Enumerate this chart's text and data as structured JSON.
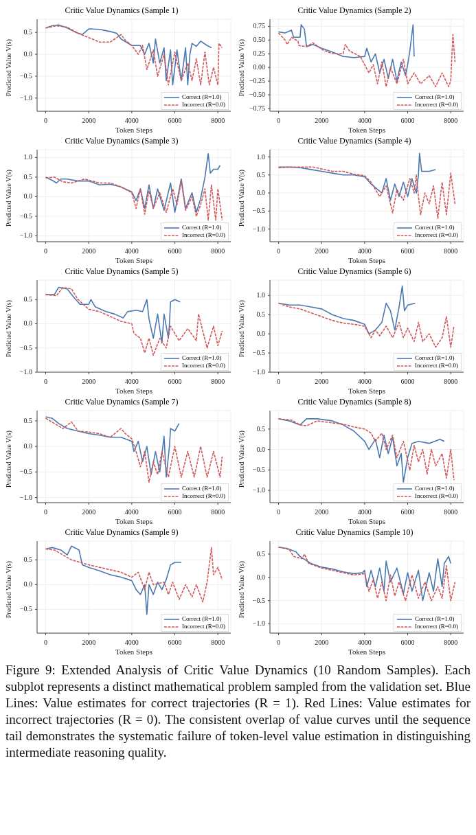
{
  "chart_data": [
    {
      "type": "line",
      "title": "Critic Value Dynamics (Sample 1)",
      "xlabel": "Token Steps",
      "ylabel": "Predicted Value V(s)",
      "xlim": [
        -400,
        8600
      ],
      "xticks": [
        0,
        2000,
        4000,
        6000,
        8000
      ],
      "ylim": [
        -1.3,
        0.8
      ],
      "yticks": [
        {
          "value": -1,
          "label": "−1.0"
        },
        {
          "value": -0.5,
          "label": "−0.5"
        },
        {
          "value": 0,
          "label": "0.0"
        },
        0.5
      ],
      "grid": true,
      "legend": "bottom right",
      "series": [
        {
          "name": "Correct (R=1.0)",
          "color": "#4a78b0",
          "line_style": "solid",
          "x": [
            0,
            300,
            600,
            1000,
            1400,
            1700,
            2000,
            2500,
            3000,
            3300,
            3500,
            4000,
            4400,
            4600,
            4800,
            5000,
            5100,
            5300,
            5500,
            5600,
            5800,
            5900,
            6100,
            6300,
            6500,
            6600,
            6700,
            6800,
            7000,
            7200,
            7500,
            7700
          ],
          "values": [
            0.6,
            0.65,
            0.67,
            0.6,
            0.5,
            0.45,
            0.58,
            0.57,
            0.52,
            0.48,
            0.35,
            0.2,
            0.2,
            0.0,
            0.25,
            -0.2,
            0.35,
            -0.2,
            0.15,
            -0.6,
            0.1,
            -0.7,
            0.1,
            -0.6,
            0.15,
            -0.7,
            0.0,
            0.25,
            0.18,
            0.3,
            0.2,
            0.15
          ]
        },
        {
          "name": "Incorrect (R=0.0)",
          "color": "#d0585a",
          "line_style": "dashed",
          "x": [
            0,
            500,
            1000,
            1500,
            2000,
            2500,
            3000,
            3300,
            3500,
            3700,
            4000,
            4300,
            4500,
            4700,
            5000,
            5200,
            5500,
            5700,
            6000,
            6300,
            6600,
            6800,
            7000,
            7200,
            7400,
            7600,
            7800,
            8000,
            8050,
            8200
          ],
          "values": [
            0.6,
            0.65,
            0.62,
            0.48,
            0.38,
            0.28,
            0.28,
            0.38,
            0.45,
            0.32,
            0.2,
            0.0,
            0.2,
            -0.35,
            0.1,
            -0.5,
            0.0,
            -0.7,
            0.05,
            -0.6,
            -0.2,
            -0.6,
            -0.1,
            -0.7,
            0.05,
            -0.7,
            -0.3,
            -0.7,
            0.25,
            0.15
          ]
        }
      ]
    },
    {
      "type": "line",
      "title": "Critic Value Dynamics (Sample 2)",
      "xlabel": "Token Steps",
      "ylabel": "Predicted Value V(s)",
      "xlim": [
        -400,
        8600
      ],
      "xticks": [
        0,
        2000,
        4000,
        6000,
        8000
      ],
      "ylim": [
        -0.8,
        0.88
      ],
      "yticks": [
        {
          "value": -0.75,
          "label": "−0.75"
        },
        {
          "value": -0.5,
          "label": "−0.50"
        },
        {
          "value": -0.25,
          "label": "−0.25"
        },
        {
          "value": 0,
          "label": "0.00"
        },
        0.25,
        {
          "value": 0.5,
          "label": "0.50"
        },
        0.75
      ],
      "grid": true,
      "legend": "bottom right",
      "series": [
        {
          "name": "Correct (R=1.0)",
          "color": "#4a78b0",
          "line_style": "solid",
          "x": [
            0,
            300,
            600,
            700,
            1000,
            1050,
            1200,
            1300,
            1600,
            2000,
            2500,
            3000,
            3500,
            4000,
            4100,
            4300,
            4500,
            4700,
            4900,
            5100,
            5300,
            5500,
            5700,
            5900,
            6000,
            6100,
            6250,
            6300
          ],
          "values": [
            0.65,
            0.63,
            0.68,
            0.55,
            0.55,
            0.78,
            0.7,
            0.38,
            0.42,
            0.35,
            0.28,
            0.2,
            0.18,
            0.2,
            0.35,
            0.1,
            0.25,
            -0.1,
            0.15,
            -0.2,
            0.15,
            -0.25,
            0.1,
            -0.15,
            0.05,
            0.3,
            0.78,
            0.2
          ]
        },
        {
          "name": "Incorrect (R=0.0)",
          "color": "#d0585a",
          "line_style": "dashed",
          "x": [
            0,
            300,
            400,
            600,
            900,
            950,
            1300,
            1600,
            2000,
            2500,
            3000,
            3100,
            3300,
            3800,
            4000,
            4200,
            4400,
            4600,
            4800,
            5000,
            5200,
            5500,
            5800,
            6000,
            6300,
            6600,
            7000,
            7300,
            7600,
            7900,
            8000,
            8100,
            8200
          ],
          "values": [
            0.63,
            0.5,
            0.42,
            0.55,
            0.48,
            0.4,
            0.38,
            0.45,
            0.33,
            0.25,
            0.25,
            0.42,
            0.3,
            0.2,
            0.05,
            -0.1,
            0.05,
            -0.3,
            0.1,
            -0.35,
            0.0,
            -0.3,
            0.15,
            -0.3,
            -0.1,
            -0.3,
            -0.15,
            -0.35,
            -0.1,
            -0.35,
            -0.25,
            0.6,
            0.1
          ]
        }
      ]
    },
    {
      "type": "line",
      "title": "Critic Value Dynamics (Sample 3)",
      "xlabel": "Token Steps",
      "ylabel": "Predicted Value V(s)",
      "xlim": [
        -400,
        8600
      ],
      "xticks": [
        0,
        2000,
        4000,
        6000,
        8000
      ],
      "ylim": [
        -1.15,
        1.2
      ],
      "yticks": [
        {
          "value": -1,
          "label": "−1.0"
        },
        {
          "value": -0.5,
          "label": "−0.5"
        },
        {
          "value": 0,
          "label": "0.0"
        },
        0.5,
        {
          "value": 1,
          "label": "1.0"
        }
      ],
      "grid": true,
      "legend": "bottom right",
      "series": [
        {
          "name": "Correct (R=1.0)",
          "color": "#4a78b0",
          "line_style": "solid",
          "x": [
            0,
            300,
            500,
            700,
            1000,
            1500,
            2000,
            2500,
            3000,
            3500,
            4000,
            4200,
            4400,
            4600,
            4800,
            5000,
            5200,
            5500,
            5800,
            6000,
            6300,
            6500,
            6800,
            7000,
            7200,
            7400,
            7550,
            7650,
            7800,
            8000,
            8100
          ],
          "values": [
            0.5,
            0.42,
            0.35,
            0.45,
            0.45,
            0.4,
            0.4,
            0.3,
            0.32,
            0.25,
            0.12,
            -0.1,
            0.2,
            -0.3,
            0.3,
            -0.3,
            0.2,
            -0.35,
            0.35,
            -0.4,
            0.45,
            -0.3,
            0.1,
            -0.4,
            -0.05,
            0.5,
            1.1,
            0.6,
            0.7,
            0.7,
            0.8
          ]
        },
        {
          "name": "Incorrect (R=0.0)",
          "color": "#d0585a",
          "line_style": "dashed",
          "x": [
            0,
            400,
            800,
            1200,
            1800,
            2500,
            3000,
            3500,
            4000,
            4200,
            4400,
            4600,
            4800,
            5000,
            5300,
            5600,
            5900,
            6100,
            6300,
            6500,
            6800,
            7000,
            7200,
            7400,
            7550,
            7700,
            7900,
            8000,
            8200
          ],
          "values": [
            0.48,
            0.5,
            0.38,
            0.35,
            0.45,
            0.35,
            0.35,
            0.25,
            0.1,
            -0.3,
            0.2,
            -0.45,
            0.15,
            -0.3,
            0.1,
            -0.4,
            0.2,
            -0.2,
            0.4,
            -0.35,
            0.0,
            -0.5,
            -0.2,
            0.2,
            -0.6,
            0.3,
            -0.6,
            0.2,
            -0.6
          ]
        }
      ]
    },
    {
      "type": "line",
      "title": "Critic Value Dynamics (Sample 4)",
      "xlabel": "Token Steps",
      "ylabel": "Predicted Value V(s)",
      "xlim": [
        -400,
        8600
      ],
      "xticks": [
        0,
        2000,
        4000,
        6000,
        8000
      ],
      "ylim": [
        -1.35,
        1.2
      ],
      "yticks": [
        {
          "value": -1,
          "label": "−1.0"
        },
        {
          "value": -0.5,
          "label": "−0.5"
        },
        {
          "value": 0,
          "label": "0.0"
        },
        0.5,
        {
          "value": 1,
          "label": "1.0"
        }
      ],
      "grid": true,
      "legend": "bottom right",
      "series": [
        {
          "name": "Correct (R=1.0)",
          "color": "#4a78b0",
          "line_style": "solid",
          "x": [
            0,
            500,
            1000,
            1500,
            2000,
            2500,
            3000,
            3500,
            4000,
            4300,
            4600,
            4800,
            5000,
            5200,
            5400,
            5600,
            5800,
            6000,
            6200,
            6400,
            6500,
            6550,
            6650,
            7000,
            7300
          ],
          "values": [
            0.72,
            0.72,
            0.7,
            0.65,
            0.6,
            0.55,
            0.5,
            0.5,
            0.45,
            0.25,
            0.1,
            0.0,
            0.4,
            -0.2,
            0.25,
            -0.1,
            0.3,
            -0.1,
            0.4,
            0.0,
            0.5,
            1.1,
            0.6,
            0.6,
            0.65
          ]
        },
        {
          "name": "Incorrect (R=0.0)",
          "color": "#d0585a",
          "line_style": "dashed",
          "x": [
            0,
            800,
            1600,
            2500,
            3000,
            3500,
            4000,
            4300,
            4500,
            4700,
            5000,
            5200,
            5300,
            5500,
            5800,
            6100,
            6300,
            6400,
            6500,
            6600,
            6800,
            7000,
            7200,
            7400,
            7600,
            7800,
            8000,
            8200
          ],
          "values": [
            0.7,
            0.72,
            0.72,
            0.6,
            0.6,
            0.52,
            0.48,
            0.3,
            0.1,
            -0.1,
            0.2,
            -0.3,
            -0.55,
            0.1,
            -0.2,
            0.4,
            0.0,
            0.5,
            -0.1,
            -0.6,
            0.0,
            -0.3,
            0.2,
            -0.7,
            0.3,
            -0.6,
            0.55,
            -0.3
          ]
        }
      ]
    },
    {
      "type": "line",
      "title": "Critic Value Dynamics (Sample 5)",
      "xlabel": "Token Steps",
      "ylabel": "Predicted Value V(s)",
      "xlim": [
        -400,
        8600
      ],
      "xticks": [
        0,
        2000,
        4000,
        6000,
        8000
      ],
      "ylim": [
        -1.0,
        0.9
      ],
      "yticks": [
        {
          "value": -1,
          "label": "−1.0"
        },
        {
          "value": -0.5,
          "label": "−0.5"
        },
        {
          "value": 0,
          "label": "0.0"
        },
        0.5
      ],
      "grid": true,
      "legend": "bottom right",
      "series": [
        {
          "name": "Correct (R=1.0)",
          "color": "#4a78b0",
          "line_style": "solid",
          "x": [
            0,
            400,
            600,
            1000,
            1300,
            1600,
            2000,
            2100,
            2300,
            2800,
            3200,
            3600,
            3800,
            4200,
            4500,
            4700,
            4800,
            5000,
            5200,
            5400,
            5500,
            5700,
            5750,
            5800,
            6000,
            6250
          ],
          "values": [
            0.6,
            0.6,
            0.75,
            0.72,
            0.55,
            0.4,
            0.4,
            0.5,
            0.35,
            0.25,
            0.2,
            0.12,
            0.25,
            0.28,
            0.25,
            0.5,
            0.1,
            -0.3,
            0.2,
            -0.4,
            0.2,
            -0.3,
            0.0,
            0.45,
            0.5,
            0.45
          ]
        },
        {
          "name": "Incorrect (R=0.0)",
          "color": "#d0585a",
          "line_style": "dashed",
          "x": [
            0,
            500,
            800,
            1200,
            1500,
            2000,
            2500,
            3000,
            3500,
            4000,
            4100,
            4400,
            4600,
            4800,
            5000,
            5300,
            5600,
            5800,
            6200,
            6600,
            7000,
            7100,
            7300,
            7500,
            7800,
            8000,
            8200
          ],
          "values": [
            0.6,
            0.58,
            0.75,
            0.72,
            0.5,
            0.3,
            0.25,
            0.15,
            0.05,
            0.0,
            -0.2,
            -0.3,
            -0.6,
            -0.3,
            -0.65,
            -0.3,
            -0.5,
            -0.05,
            -0.35,
            -0.1,
            -0.35,
            0.2,
            -0.15,
            -0.5,
            -0.05,
            -0.45,
            -0.15
          ]
        }
      ]
    },
    {
      "type": "line",
      "title": "Critic Value Dynamics (Sample 6)",
      "xlabel": "Token Steps",
      "ylabel": "Predicted Value V(s)",
      "xlim": [
        -400,
        8600
      ],
      "xticks": [
        0,
        2000,
        4000,
        6000,
        8000
      ],
      "ylim": [
        -1.0,
        1.4
      ],
      "yticks": [
        {
          "value": -1,
          "label": "−1.0"
        },
        {
          "value": -0.5,
          "label": "−0.5"
        },
        {
          "value": 0,
          "label": "0.0"
        },
        0.5,
        {
          "value": 1,
          "label": "1.0"
        }
      ],
      "grid": true,
      "legend": "bottom right",
      "series": [
        {
          "name": "Correct (R=1.0)",
          "color": "#4a78b0",
          "line_style": "solid",
          "x": [
            0,
            500,
            1000,
            1500,
            2000,
            2500,
            3000,
            3500,
            4000,
            4200,
            4500,
            4800,
            5000,
            5200,
            5400,
            5600,
            5750,
            5850,
            6000,
            6350
          ],
          "values": [
            0.8,
            0.75,
            0.75,
            0.7,
            0.65,
            0.5,
            0.4,
            0.35,
            0.25,
            0.0,
            0.1,
            0.3,
            0.8,
            0.6,
            0.1,
            0.7,
            1.25,
            0.6,
            0.75,
            0.8
          ]
        },
        {
          "name": "Incorrect (R=0.0)",
          "color": "#d0585a",
          "line_style": "dashed",
          "x": [
            0,
            500,
            1000,
            1500,
            2000,
            2500,
            3000,
            3500,
            4000,
            4300,
            4500,
            4700,
            5000,
            5300,
            5600,
            5800,
            6000,
            6300,
            6500,
            6700,
            7000,
            7300,
            7600,
            7800,
            8000,
            8150
          ],
          "values": [
            0.8,
            0.7,
            0.65,
            0.55,
            0.45,
            0.35,
            0.28,
            0.25,
            0.2,
            -0.1,
            0.1,
            -0.05,
            0.2,
            -0.1,
            0.3,
            -0.1,
            0.15,
            -0.2,
            0.3,
            -0.2,
            0.0,
            -0.35,
            -0.1,
            0.45,
            -0.35,
            0.2
          ]
        }
      ]
    },
    {
      "type": "line",
      "title": "Critic Value Dynamics (Sample 7)",
      "xlabel": "Token Steps",
      "ylabel": "Predicted Value V(s)",
      "xlim": [
        -400,
        8600
      ],
      "xticks": [
        0,
        2000,
        4000,
        6000,
        8000
      ],
      "ylim": [
        -1.1,
        0.7
      ],
      "yticks": [
        {
          "value": -1,
          "label": "−1.0"
        },
        {
          "value": -0.5,
          "label": "−0.5"
        },
        {
          "value": 0,
          "label": "0.0"
        },
        0.5
      ],
      "grid": true,
      "legend": "bottom right",
      "series": [
        {
          "name": "Correct (R=1.0)",
          "color": "#4a78b0",
          "line_style": "solid",
          "x": [
            0,
            300,
            600,
            1000,
            1500,
            2000,
            2500,
            3000,
            3500,
            4000,
            4100,
            4300,
            4500,
            4700,
            4900,
            5100,
            5300,
            5500,
            5600,
            5750,
            5800,
            6000,
            6200
          ],
          "values": [
            0.58,
            0.55,
            0.45,
            0.35,
            0.3,
            0.25,
            0.22,
            0.18,
            0.18,
            0.1,
            -0.1,
            0.1,
            -0.3,
            0.0,
            -0.55,
            -0.1,
            -0.5,
            0.2,
            -0.6,
            0.0,
            0.35,
            0.3,
            0.45
          ]
        },
        {
          "name": "Incorrect (R=0.0)",
          "color": "#d0585a",
          "line_style": "dashed",
          "x": [
            0,
            400,
            800,
            1200,
            1500,
            2000,
            2500,
            3000,
            3500,
            3700,
            4000,
            4200,
            4400,
            4600,
            4800,
            5000,
            5200,
            5400,
            5700,
            6000,
            6300,
            6600,
            6900,
            7200,
            7500,
            7800,
            8100,
            8200
          ],
          "values": [
            0.55,
            0.45,
            0.35,
            0.48,
            0.3,
            0.28,
            0.25,
            0.18,
            0.35,
            0.25,
            0.15,
            -0.1,
            -0.4,
            -0.1,
            -0.7,
            -0.3,
            -0.55,
            -0.1,
            -0.6,
            0.0,
            -0.6,
            -0.1,
            -0.6,
            0.0,
            -0.6,
            -0.1,
            -0.6,
            -0.2
          ]
        }
      ]
    },
    {
      "type": "line",
      "title": "Critic Value Dynamics (Sample 8)",
      "xlabel": "Token Steps",
      "ylabel": "Predicted Value V(s)",
      "xlim": [
        -400,
        8600
      ],
      "xticks": [
        0,
        2000,
        4000,
        6000,
        8000
      ],
      "ylim": [
        -1.3,
        0.95
      ],
      "yticks": [
        {
          "value": -1,
          "label": "−1.0"
        },
        {
          "value": -0.5,
          "label": "−0.5"
        },
        {
          "value": 0,
          "label": "0.0"
        },
        0.5
      ],
      "grid": true,
      "legend": "bottom right",
      "series": [
        {
          "name": "Correct (R=1.0)",
          "color": "#4a78b0",
          "line_style": "solid",
          "x": [
            0,
            500,
            1000,
            1300,
            1800,
            2500,
            3000,
            3500,
            4000,
            4200,
            4500,
            4700,
            4900,
            5100,
            5300,
            5500,
            5700,
            5800,
            6000,
            6200,
            6500,
            7000,
            7500,
            7700
          ],
          "values": [
            0.75,
            0.7,
            0.6,
            0.75,
            0.75,
            0.7,
            0.6,
            0.45,
            0.2,
            0.0,
            0.25,
            -0.2,
            0.35,
            -0.1,
            0.3,
            -0.4,
            -0.1,
            -0.8,
            -0.2,
            0.15,
            0.2,
            0.15,
            0.25,
            0.2
          ]
        },
        {
          "name": "Incorrect (R=0.0)",
          "color": "#d0585a",
          "line_style": "dashed",
          "x": [
            0,
            600,
            1000,
            1300,
            1800,
            2500,
            3000,
            3500,
            4000,
            4300,
            4500,
            4800,
            5000,
            5300,
            5500,
            5800,
            6100,
            6300,
            6500,
            6700,
            6900,
            7100,
            7300,
            7600,
            7800,
            8000,
            8150
          ],
          "values": [
            0.75,
            0.72,
            0.6,
            0.58,
            0.7,
            0.65,
            0.62,
            0.55,
            0.5,
            0.4,
            0.2,
            0.4,
            0.0,
            0.35,
            -0.2,
            0.2,
            -0.5,
            0.1,
            -0.3,
            0.0,
            -0.6,
            0.0,
            -0.4,
            -0.1,
            -0.7,
            0.0,
            -0.75
          ]
        }
      ]
    },
    {
      "type": "line",
      "title": "Critic Value Dynamics (Sample 9)",
      "xlabel": "Token Steps",
      "ylabel": "Predicted Value V(s)",
      "xlim": [
        -400,
        8600
      ],
      "xticks": [
        0,
        2000,
        4000,
        6000,
        8000
      ],
      "ylim": [
        -0.98,
        0.88
      ],
      "yticks": [
        {
          "value": -0.5,
          "label": "−0.5"
        },
        {
          "value": 0,
          "label": "0.0"
        },
        0.5
      ],
      "grid": true,
      "legend": "bottom right",
      "series": [
        {
          "name": "Correct (R=1.0)",
          "color": "#4a78b0",
          "line_style": "solid",
          "x": [
            0,
            300,
            700,
            1000,
            1200,
            1550,
            1700,
            2000,
            2500,
            3000,
            3500,
            4000,
            4200,
            4400,
            4600,
            4700,
            4800,
            5000,
            5200,
            5400,
            5600,
            5800,
            6000,
            6300
          ],
          "values": [
            0.72,
            0.75,
            0.7,
            0.6,
            0.78,
            0.7,
            0.4,
            0.35,
            0.28,
            0.2,
            0.15,
            0.08,
            -0.1,
            -0.2,
            0.0,
            -0.6,
            0.0,
            -0.2,
            0.05,
            -0.1,
            0.1,
            0.4,
            0.45,
            0.45
          ]
        },
        {
          "name": "Incorrect (R=0.0)",
          "color": "#d0585a",
          "line_style": "dashed",
          "x": [
            0,
            400,
            800,
            1200,
            1600,
            2000,
            2500,
            3000,
            3500,
            4000,
            4300,
            4600,
            4800,
            5000,
            5500,
            5700,
            5900,
            6200,
            6500,
            6800,
            7000,
            7300,
            7500,
            7700,
            7800,
            8000,
            8200
          ],
          "values": [
            0.72,
            0.7,
            0.6,
            0.5,
            0.45,
            0.4,
            0.35,
            0.3,
            0.25,
            0.15,
            0.25,
            -0.1,
            0.25,
            0.0,
            0.05,
            -0.2,
            0.05,
            -0.3,
            0.0,
            -0.25,
            0.0,
            -0.35,
            0.05,
            0.75,
            0.2,
            0.35,
            0.1
          ]
        }
      ]
    },
    {
      "type": "line",
      "title": "Critic Value Dynamics (Sample 10)",
      "xlabel": "Token Steps",
      "ylabel": "Predicted Value V(s)",
      "xlim": [
        -400,
        8600
      ],
      "xticks": [
        0,
        2000,
        4000,
        6000,
        8000
      ],
      "ylim": [
        -1.2,
        0.78
      ],
      "yticks": [
        {
          "value": -1,
          "label": "−1.0"
        },
        {
          "value": -0.5,
          "label": "−0.5"
        },
        {
          "value": 0,
          "label": "0.0"
        },
        0.5
      ],
      "grid": true,
      "legend": "bottom right",
      "annotations": [
        "Figure 9: Extended Analysis of Critic Value Dynamics (10 Random Samples). Each subplot represents a distinct mathematical problem sampled from the validation set. Blue Lines: Value estimates for correct trajectories (R = 1). Red Lines: Value estimates for incorrect trajectories (R = 0). The consistent overlap of value curves until the sequence tail demonstrates the systematic failure of token-level value estimation in distinguishing intermediate reasoning quality."
      ],
      "series": [
        {
          "name": "Correct (R=1.0)",
          "color": "#4a78b0",
          "line_style": "solid",
          "x": [
            0,
            400,
            800,
            1000,
            1500,
            2000,
            2500,
            3000,
            3500,
            3900,
            4000,
            4100,
            4300,
            4500,
            4700,
            4900,
            5000,
            5200,
            5500,
            5800,
            6000,
            6200,
            6500,
            6700,
            7000,
            7200,
            7400,
            7600,
            7700,
            7900,
            8000
          ],
          "values": [
            0.65,
            0.62,
            0.55,
            0.45,
            0.3,
            0.22,
            0.18,
            0.12,
            0.08,
            0.1,
            0.15,
            -0.2,
            0.15,
            -0.2,
            0.2,
            -0.3,
            0.35,
            -0.1,
            0.2,
            -0.35,
            0.1,
            -0.3,
            0.15,
            -0.5,
            0.1,
            -0.3,
            0.4,
            -0.2,
            0.3,
            0.45,
            0.3
          ]
        },
        {
          "name": "Incorrect (R=0.0)",
          "color": "#d0585a",
          "line_style": "dashed",
          "x": [
            0,
            500,
            700,
            1100,
            1200,
            1400,
            2000,
            2500,
            3000,
            3500,
            4000,
            4200,
            4400,
            4600,
            4800,
            5000,
            5200,
            5400,
            5600,
            5900,
            6200,
            6500,
            6800,
            7100,
            7400,
            7600,
            7800,
            8000,
            8200
          ],
          "values": [
            0.65,
            0.6,
            0.45,
            0.4,
            0.5,
            0.3,
            0.2,
            0.15,
            0.1,
            0.05,
            0.08,
            -0.3,
            -0.05,
            -0.45,
            -0.1,
            -0.5,
            0.05,
            -0.4,
            -0.1,
            -0.5,
            0.05,
            -0.45,
            -0.1,
            -0.5,
            -0.2,
            -0.45,
            0.25,
            -0.5,
            -0.1
          ]
        }
      ]
    }
  ]
}
